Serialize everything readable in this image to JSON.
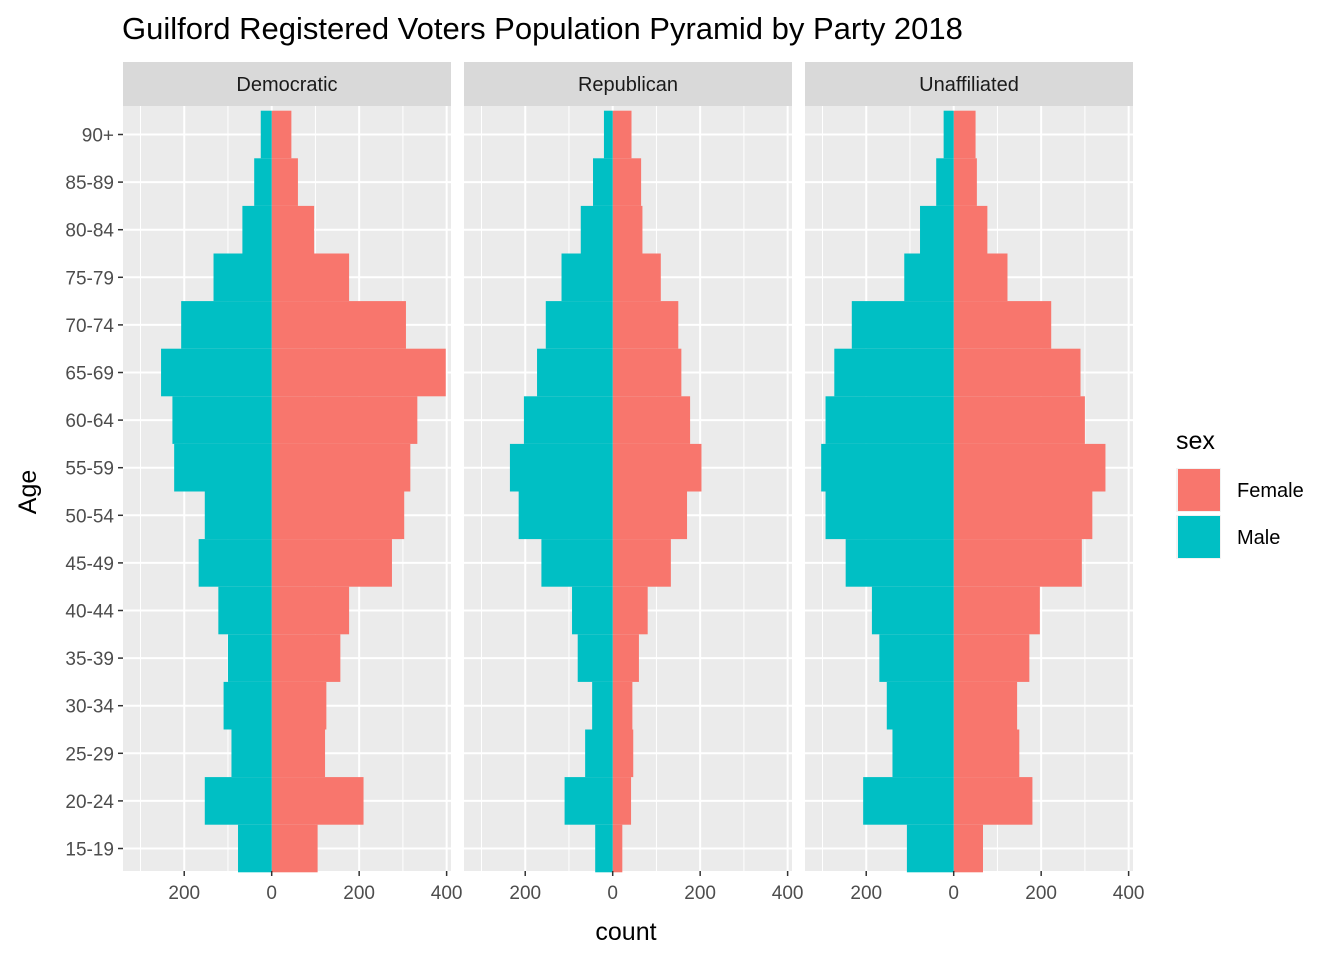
{
  "chart_data": {
    "type": "bar",
    "orientation": "horizontal",
    "title": "Guilford Registered Voters Population Pyramid by Party 2018",
    "xlabel": "count",
    "ylabel": "Age",
    "categories": [
      "15-19",
      "20-24",
      "25-29",
      "30-34",
      "35-39",
      "40-44",
      "45-49",
      "50-54",
      "55-59",
      "60-64",
      "65-69",
      "70-74",
      "75-79",
      "80-84",
      "85-89",
      "90+"
    ],
    "xlim": [
      -340,
      410
    ],
    "x_ticks": [
      -200,
      0,
      200,
      400
    ],
    "x_tick_labels": [
      "200",
      "0",
      "200",
      "400"
    ],
    "grid": true,
    "legend": {
      "title": "sex",
      "position": "right",
      "entries": [
        {
          "label": "Female",
          "color": "#F8766D"
        },
        {
          "label": "Male",
          "color": "#00BFC4"
        }
      ]
    },
    "panels": [
      {
        "name": "Democratic",
        "series": [
          {
            "name": "Female",
            "values": [
              105,
              210,
              122,
              125,
              157,
              177,
              275,
              303,
              317,
              333,
              398,
              307,
              177,
              97,
              60,
              45
            ]
          },
          {
            "name": "Male",
            "values": [
              -77,
              -153,
              -92,
              -110,
              -100,
              -122,
              -167,
              -153,
              -223,
              -227,
              -253,
              -207,
              -133,
              -67,
              -40,
              -25
            ]
          }
        ]
      },
      {
        "name": "Republican",
        "series": [
          {
            "name": "Female",
            "values": [
              22,
              42,
              47,
              45,
              60,
              80,
              133,
              170,
              203,
              177,
              157,
              150,
              110,
              68,
              65,
              43
            ]
          },
          {
            "name": "Male",
            "values": [
              -40,
              -110,
              -63,
              -47,
              -80,
              -93,
              -163,
              -215,
              -235,
              -203,
              -173,
              -153,
              -117,
              -73,
              -45,
              -20
            ]
          }
        ]
      },
      {
        "name": "Unaffiliated",
        "series": [
          {
            "name": "Female",
            "values": [
              67,
              180,
              150,
              145,
              173,
              197,
              293,
              317,
              347,
              300,
              290,
              223,
              123,
              77,
              53,
              50
            ]
          },
          {
            "name": "Male",
            "values": [
              -107,
              -207,
              -140,
              -153,
              -170,
              -187,
              -247,
              -293,
              -303,
              -293,
              -273,
              -233,
              -113,
              -77,
              -40,
              -23
            ]
          }
        ]
      }
    ]
  }
}
